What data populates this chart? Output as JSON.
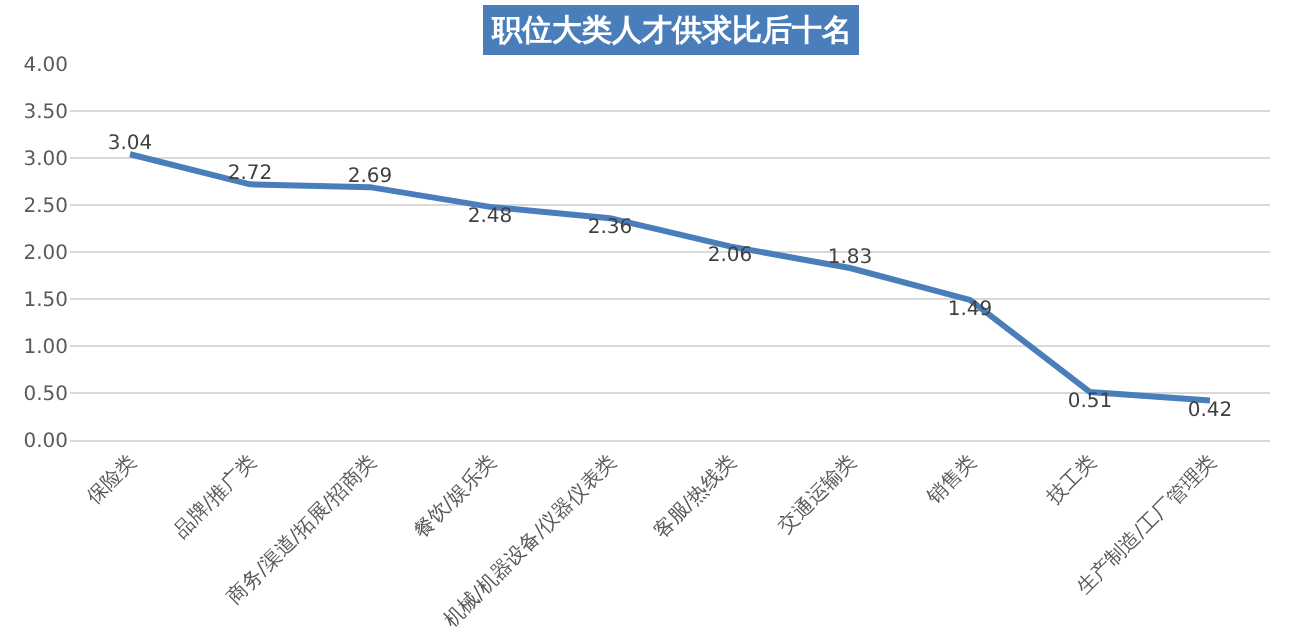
{
  "chart_data": {
    "type": "line",
    "title": "职位大类人才供求比后十名",
    "categories": [
      "保险类",
      "品牌/推广类",
      "商务/渠道/拓展/招商类",
      "餐饮/娱乐类",
      "机械/机器设备/仪器仪表类",
      "客服/热线类",
      "交通运输类",
      "销售类",
      "技工类",
      "生产制造/工厂管理类"
    ],
    "series": [
      {
        "color": "#4a7ebb",
        "values": [
          3.04,
          2.72,
          2.69,
          2.48,
          2.36,
          2.06,
          1.83,
          1.49,
          0.51,
          0.42
        ]
      }
    ],
    "ylim": [
      0,
      4
    ],
    "yticks": [
      {
        "value": 0,
        "label": "0.00"
      },
      {
        "value": 0.5,
        "label": "0.50"
      },
      {
        "value": 1,
        "label": "1.00"
      },
      {
        "value": 1.5,
        "label": "1.50"
      },
      {
        "value": 2,
        "label": "2.00"
      },
      {
        "value": 2.5,
        "label": "2.50"
      },
      {
        "value": 3,
        "label": "3.00"
      },
      {
        "value": 3.5,
        "label": "3.50"
      },
      {
        "value": 4,
        "label": "4.00"
      }
    ],
    "grid": "y",
    "marker": "none",
    "line_style": "solid",
    "data_labels": true
  }
}
